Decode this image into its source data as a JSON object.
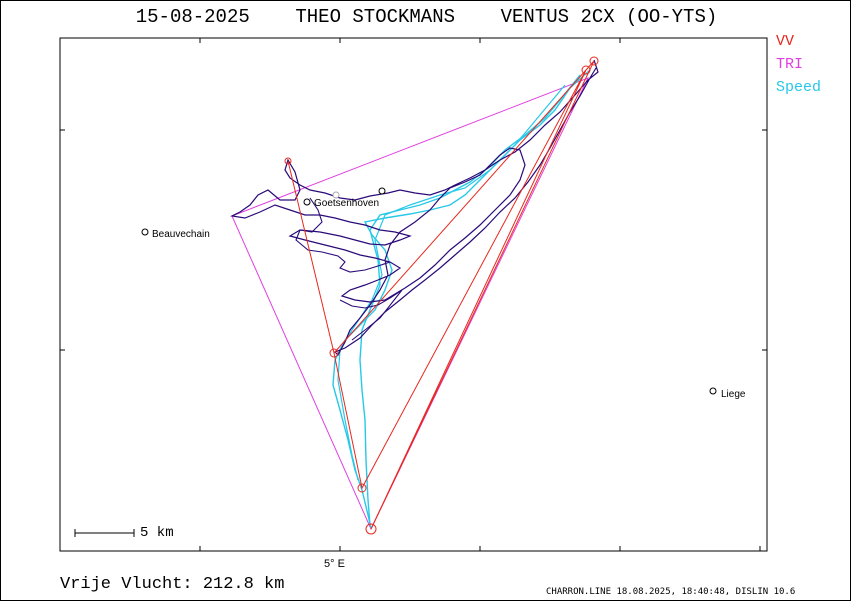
{
  "header": {
    "date": "15-08-2025",
    "pilot": "THEO STOCKMANS",
    "glider": "VENTUS 2CX (OO-YTS)"
  },
  "legend": [
    {
      "label": "VV",
      "color": "#e8281e"
    },
    {
      "label": "TRI",
      "color": "#e040e0"
    },
    {
      "label": "Speed",
      "color": "#28c8e8"
    }
  ],
  "track_color": "#2a0a78",
  "places": [
    {
      "name": "Beauvechain"
    },
    {
      "name": "Goetsenhoven"
    },
    {
      "name": "Liege"
    }
  ],
  "axis": {
    "x_tick_label": "5° E"
  },
  "scale": {
    "label": "5 km"
  },
  "footer": {
    "distance": "Vrije Vlucht:  212.8 km",
    "credits": "CHARRON.LINE 18.08.2025, 18:40:48, DISLIN 10.6"
  }
}
